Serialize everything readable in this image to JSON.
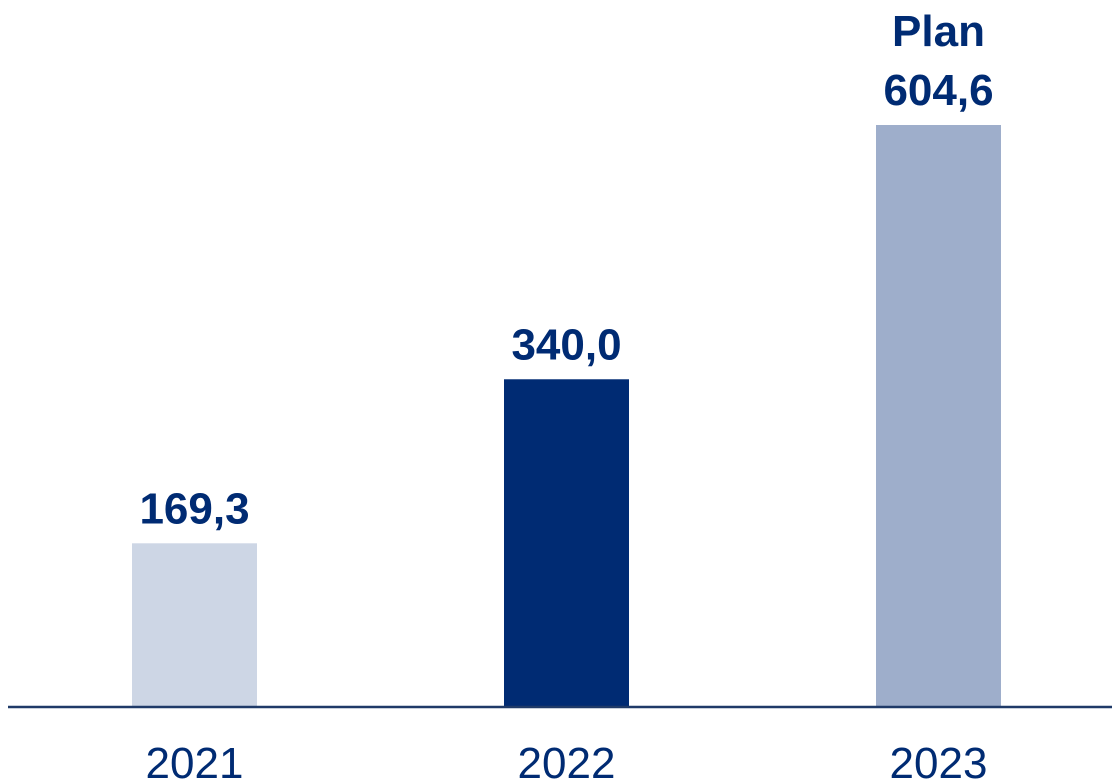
{
  "chart_data": {
    "type": "bar",
    "title": "",
    "xlabel": "",
    "ylabel": "",
    "categories": [
      "2021",
      "2022",
      "2023"
    ],
    "values": [
      169.3,
      340.0,
      604.6
    ],
    "value_labels": [
      "169,3",
      "340,0",
      "604,6"
    ],
    "annotations": [
      "",
      "",
      "Plan"
    ],
    "ylim": [
      0,
      604.6
    ],
    "grid": false,
    "colors": [
      "#cdd6e5",
      "#002b73",
      "#9eaecb"
    ],
    "axis_color": "#1f3a68",
    "text_color": "#002b73"
  }
}
